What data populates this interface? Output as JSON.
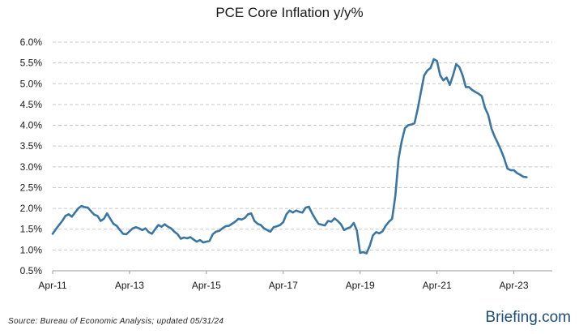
{
  "chart_data": {
    "type": "line",
    "title": "PCE Core Inflation y/y%",
    "source": "Source: Bureau of Economic Analysis; updated 05/31/24",
    "brand": "Briefing.com",
    "line_color": "#3a76a4",
    "grid": true,
    "ylim": [
      0.5,
      6.0
    ],
    "yticks": [
      "6.0%",
      "5.5%",
      "5.0%",
      "4.5%",
      "4.0%",
      "3.5%",
      "3.0%",
      "2.5%",
      "2.0%",
      "1.5%",
      "1.0%",
      "0.5%"
    ],
    "xlim": [
      "2011-04",
      "2024-04"
    ],
    "xticks": [
      {
        "label": "Apr-11",
        "date": "2011-04"
      },
      {
        "label": "Apr-13",
        "date": "2013-04"
      },
      {
        "label": "Apr-15",
        "date": "2015-04"
      },
      {
        "label": "Apr-17",
        "date": "2017-04"
      },
      {
        "label": "Apr-19",
        "date": "2019-04"
      },
      {
        "label": "Apr-21",
        "date": "2021-04"
      },
      {
        "label": "Apr-23",
        "date": "2023-04"
      }
    ],
    "series": [
      {
        "name": "",
        "points": [
          [
            "2011-04",
            1.39
          ],
          [
            "2011-05",
            1.5
          ],
          [
            "2011-06",
            1.6
          ],
          [
            "2011-07",
            1.7
          ],
          [
            "2011-08",
            1.82
          ],
          [
            "2011-09",
            1.86
          ],
          [
            "2011-10",
            1.8
          ],
          [
            "2011-11",
            1.9
          ],
          [
            "2011-12",
            2.0
          ],
          [
            "2012-01",
            2.06
          ],
          [
            "2012-02",
            2.03
          ],
          [
            "2012-03",
            2.02
          ],
          [
            "2012-04",
            1.93
          ],
          [
            "2012-05",
            1.85
          ],
          [
            "2012-06",
            1.82
          ],
          [
            "2012-07",
            1.7
          ],
          [
            "2012-08",
            1.75
          ],
          [
            "2012-09",
            1.88
          ],
          [
            "2012-10",
            1.75
          ],
          [
            "2012-11",
            1.63
          ],
          [
            "2012-12",
            1.58
          ],
          [
            "2013-01",
            1.48
          ],
          [
            "2013-02",
            1.39
          ],
          [
            "2013-03",
            1.38
          ],
          [
            "2013-04",
            1.45
          ],
          [
            "2013-05",
            1.52
          ],
          [
            "2013-06",
            1.55
          ],
          [
            "2013-07",
            1.52
          ],
          [
            "2013-08",
            1.48
          ],
          [
            "2013-09",
            1.52
          ],
          [
            "2013-10",
            1.43
          ],
          [
            "2013-11",
            1.39
          ],
          [
            "2013-12",
            1.5
          ],
          [
            "2014-01",
            1.6
          ],
          [
            "2014-02",
            1.56
          ],
          [
            "2014-03",
            1.62
          ],
          [
            "2014-04",
            1.56
          ],
          [
            "2014-05",
            1.52
          ],
          [
            "2014-06",
            1.44
          ],
          [
            "2014-07",
            1.38
          ],
          [
            "2014-08",
            1.27
          ],
          [
            "2014-09",
            1.3
          ],
          [
            "2014-10",
            1.28
          ],
          [
            "2014-11",
            1.31
          ],
          [
            "2014-12",
            1.25
          ],
          [
            "2015-01",
            1.2
          ],
          [
            "2015-02",
            1.24
          ],
          [
            "2015-03",
            1.18
          ],
          [
            "2015-04",
            1.2
          ],
          [
            "2015-05",
            1.22
          ],
          [
            "2015-06",
            1.38
          ],
          [
            "2015-07",
            1.44
          ],
          [
            "2015-08",
            1.46
          ],
          [
            "2015-09",
            1.52
          ],
          [
            "2015-10",
            1.57
          ],
          [
            "2015-11",
            1.58
          ],
          [
            "2015-12",
            1.63
          ],
          [
            "2016-01",
            1.68
          ],
          [
            "2016-02",
            1.75
          ],
          [
            "2016-03",
            1.73
          ],
          [
            "2016-04",
            1.77
          ],
          [
            "2016-05",
            1.86
          ],
          [
            "2016-06",
            1.88
          ],
          [
            "2016-07",
            1.7
          ],
          [
            "2016-08",
            1.63
          ],
          [
            "2016-09",
            1.6
          ],
          [
            "2016-10",
            1.52
          ],
          [
            "2016-11",
            1.48
          ],
          [
            "2016-12",
            1.44
          ],
          [
            "2017-01",
            1.55
          ],
          [
            "2017-02",
            1.57
          ],
          [
            "2017-03",
            1.6
          ],
          [
            "2017-04",
            1.67
          ],
          [
            "2017-05",
            1.86
          ],
          [
            "2017-06",
            1.95
          ],
          [
            "2017-07",
            1.9
          ],
          [
            "2017-08",
            1.95
          ],
          [
            "2017-09",
            1.92
          ],
          [
            "2017-10",
            1.9
          ],
          [
            "2017-11",
            2.02
          ],
          [
            "2017-12",
            2.04
          ],
          [
            "2018-01",
            1.88
          ],
          [
            "2018-02",
            1.75
          ],
          [
            "2018-03",
            1.63
          ],
          [
            "2018-04",
            1.61
          ],
          [
            "2018-05",
            1.59
          ],
          [
            "2018-06",
            1.7
          ],
          [
            "2018-07",
            1.68
          ],
          [
            "2018-08",
            1.76
          ],
          [
            "2018-09",
            1.7
          ],
          [
            "2018-10",
            1.62
          ],
          [
            "2018-11",
            1.48
          ],
          [
            "2018-12",
            1.52
          ],
          [
            "2019-01",
            1.55
          ],
          [
            "2019-02",
            1.65
          ],
          [
            "2019-03",
            1.47
          ],
          [
            "2019-04",
            0.93
          ],
          [
            "2019-05",
            0.95
          ],
          [
            "2019-06",
            0.92
          ],
          [
            "2019-07",
            1.1
          ],
          [
            "2019-08",
            1.35
          ],
          [
            "2019-09",
            1.43
          ],
          [
            "2019-10",
            1.4
          ],
          [
            "2019-11",
            1.45
          ],
          [
            "2019-12",
            1.58
          ],
          [
            "2020-01",
            1.68
          ],
          [
            "2020-02",
            1.75
          ],
          [
            "2020-03",
            2.3
          ],
          [
            "2020-04",
            3.2
          ],
          [
            "2020-05",
            3.62
          ],
          [
            "2020-06",
            3.93
          ],
          [
            "2020-07",
            4.0
          ],
          [
            "2020-08",
            4.02
          ],
          [
            "2020-09",
            4.05
          ],
          [
            "2020-10",
            4.4
          ],
          [
            "2020-11",
            4.8
          ],
          [
            "2020-12",
            5.2
          ],
          [
            "2021-01",
            5.32
          ],
          [
            "2021-02",
            5.38
          ],
          [
            "2021-03",
            5.59
          ],
          [
            "2021-04",
            5.55
          ],
          [
            "2021-05",
            5.2
          ],
          [
            "2021-06",
            5.08
          ],
          [
            "2021-07",
            5.15
          ],
          [
            "2021-08",
            4.97
          ],
          [
            "2021-09",
            5.2
          ],
          [
            "2021-10",
            5.47
          ],
          [
            "2021-11",
            5.4
          ],
          [
            "2021-12",
            5.2
          ],
          [
            "2022-01",
            4.92
          ],
          [
            "2022-02",
            4.92
          ],
          [
            "2022-03",
            4.85
          ],
          [
            "2022-04",
            4.8
          ],
          [
            "2022-05",
            4.76
          ],
          [
            "2022-06",
            4.7
          ],
          [
            "2022-07",
            4.42
          ],
          [
            "2022-08",
            4.25
          ],
          [
            "2022-09",
            3.92
          ],
          [
            "2022-10",
            3.73
          ],
          [
            "2022-11",
            3.57
          ],
          [
            "2022-12",
            3.4
          ],
          [
            "2023-01",
            3.2
          ],
          [
            "2023-02",
            2.96
          ],
          [
            "2023-03",
            2.92
          ],
          [
            "2023-04",
            2.92
          ],
          [
            "2023-05",
            2.85
          ],
          [
            "2023-06",
            2.81
          ],
          [
            "2023-07",
            2.76
          ],
          [
            "2023-08",
            2.75
          ]
        ]
      }
    ]
  }
}
